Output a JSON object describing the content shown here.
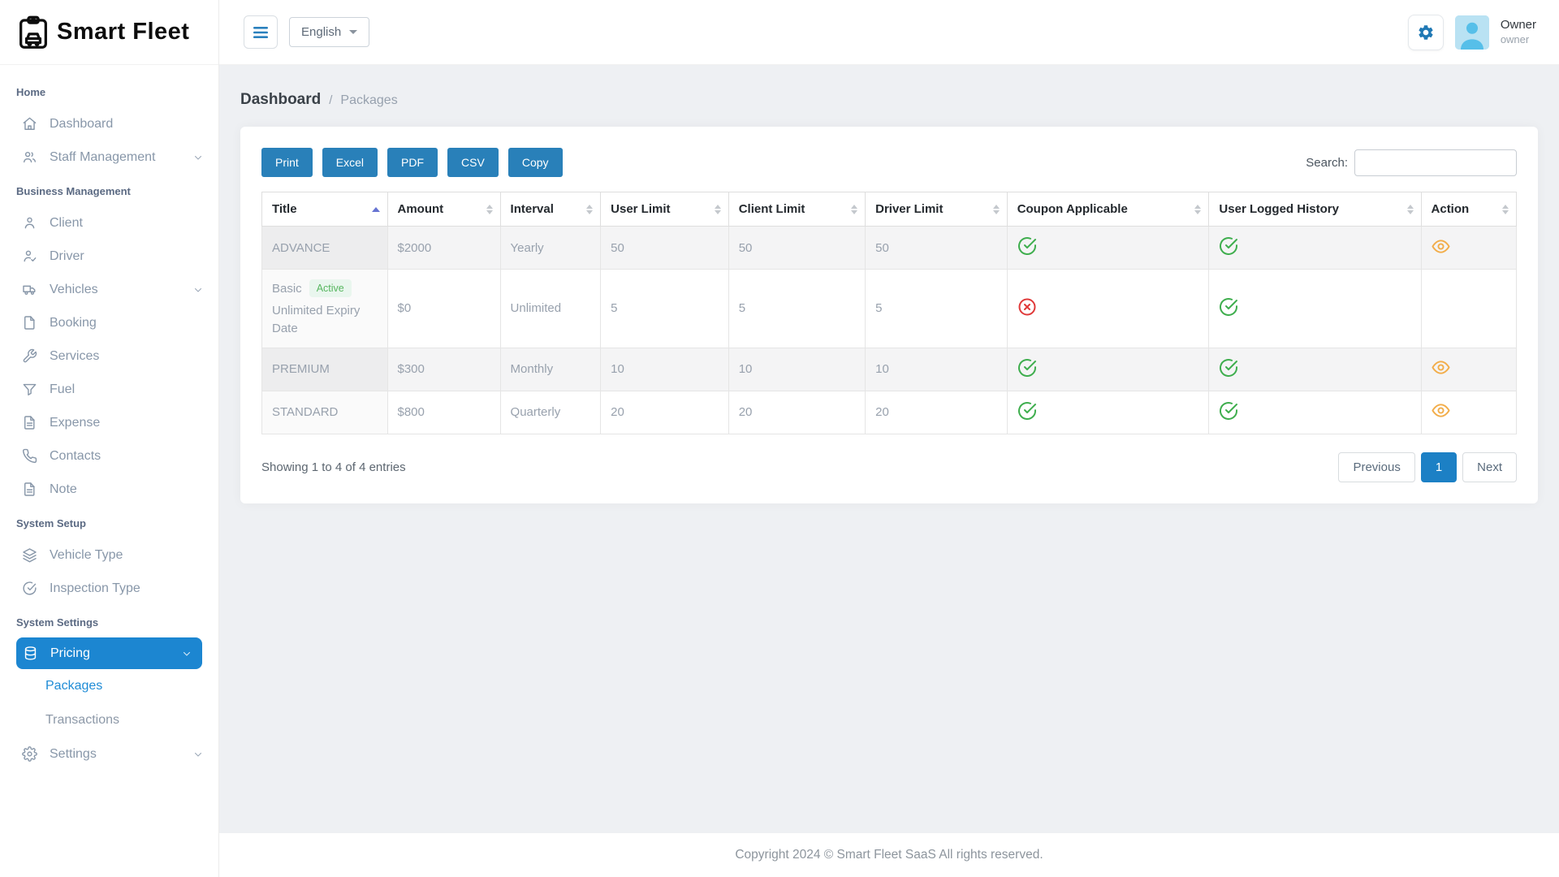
{
  "app": {
    "title": "Smart Fleet"
  },
  "topbar": {
    "language_label": "English",
    "user_name": "Owner",
    "user_role": "owner"
  },
  "breadcrumb": {
    "primary": "Dashboard",
    "separator": "/",
    "current": "Packages"
  },
  "sidebar": {
    "sections": [
      {
        "header": "Home",
        "items": [
          {
            "label": "Dashboard",
            "icon": "home-icon"
          },
          {
            "label": "Staff Management",
            "icon": "users-icon",
            "chevron": true
          }
        ]
      },
      {
        "header": "Business Management",
        "items": [
          {
            "label": "Client",
            "icon": "person-icon"
          },
          {
            "label": "Driver",
            "icon": "person-check-icon"
          },
          {
            "label": "Vehicles",
            "icon": "truck-icon",
            "chevron": true
          },
          {
            "label": "Booking",
            "icon": "file-icon"
          },
          {
            "label": "Services",
            "icon": "wrench-icon"
          },
          {
            "label": "Fuel",
            "icon": "funnel-icon"
          },
          {
            "label": "Expense",
            "icon": "file-text-icon"
          },
          {
            "label": "Contacts",
            "icon": "phone-icon"
          },
          {
            "label": "Note",
            "icon": "file-text-icon"
          }
        ]
      },
      {
        "header": "System Setup",
        "items": [
          {
            "label": "Vehicle Type",
            "icon": "layers-icon"
          },
          {
            "label": "Inspection Type",
            "icon": "check-circle-icon"
          }
        ]
      },
      {
        "header": "System Settings",
        "items": [
          {
            "label": "Pricing",
            "icon": "database-icon",
            "chevron": true,
            "active": true,
            "children": [
              {
                "label": "Packages",
                "active": true
              },
              {
                "label": "Transactions"
              }
            ]
          },
          {
            "label": "Settings",
            "icon": "gear-icon",
            "chevron": true
          }
        ]
      }
    ]
  },
  "toolbar": {
    "export_buttons": [
      "Print",
      "Excel",
      "PDF",
      "CSV",
      "Copy"
    ],
    "search_label": "Search:",
    "search_value": ""
  },
  "table": {
    "columns": [
      {
        "label": "Title",
        "key": "title",
        "sort": "asc",
        "type": "title"
      },
      {
        "label": "Amount",
        "key": "amount",
        "sort": "none",
        "type": "text"
      },
      {
        "label": "Interval",
        "key": "interval",
        "sort": "none",
        "type": "text"
      },
      {
        "label": "User Limit",
        "key": "user_limit",
        "sort": "none",
        "type": "text"
      },
      {
        "label": "Client Limit",
        "key": "client_limit",
        "sort": "none",
        "type": "text"
      },
      {
        "label": "Driver Limit",
        "key": "driver_limit",
        "sort": "none",
        "type": "text"
      },
      {
        "label": "Coupon Applicable",
        "key": "coupon_applicable",
        "sort": "none",
        "type": "status"
      },
      {
        "label": "User Logged History",
        "key": "user_logged_history",
        "sort": "none",
        "type": "status"
      },
      {
        "label": "Action",
        "key": "action",
        "sort": "none",
        "type": "action"
      }
    ],
    "rows": [
      {
        "title": "ADVANCE",
        "badge": "",
        "title_note": "",
        "amount": "$2000",
        "interval": "Yearly",
        "user_limit": "50",
        "client_limit": "50",
        "driver_limit": "50",
        "coupon_applicable": "yes",
        "user_logged_history": "yes",
        "action": "view"
      },
      {
        "title": "Basic",
        "badge": "Active",
        "title_note": "Unlimited Expiry Date",
        "amount": "$0",
        "interval": "Unlimited",
        "user_limit": "5",
        "client_limit": "5",
        "driver_limit": "5",
        "coupon_applicable": "no",
        "user_logged_history": "yes",
        "action": ""
      },
      {
        "title": "PREMIUM",
        "badge": "",
        "title_note": "",
        "amount": "$300",
        "interval": "Monthly",
        "user_limit": "10",
        "client_limit": "10",
        "driver_limit": "10",
        "coupon_applicable": "yes",
        "user_logged_history": "yes",
        "action": "view"
      },
      {
        "title": "STANDARD",
        "badge": "",
        "title_note": "",
        "amount": "$800",
        "interval": "Quarterly",
        "user_limit": "20",
        "client_limit": "20",
        "driver_limit": "20",
        "coupon_applicable": "yes",
        "user_logged_history": "yes",
        "action": "view"
      }
    ]
  },
  "table_footer": {
    "info": "Showing 1 to 4 of 4 entries",
    "previous_label": "Previous",
    "pages": [
      "1"
    ],
    "active_page": "1",
    "next_label": "Next"
  },
  "footer": {
    "copyright": "Copyright 2024 © Smart Fleet SaaS All rights reserved."
  },
  "colors": {
    "primary": "#2980b9",
    "sidebar_active": "#1c86d1",
    "page_active": "#1c80c5",
    "success": "#3fae4e",
    "danger": "#e03a3a",
    "warning": "#f2ad4a",
    "badge_bg": "#e9f6ee",
    "badge_text": "#57b65f"
  }
}
